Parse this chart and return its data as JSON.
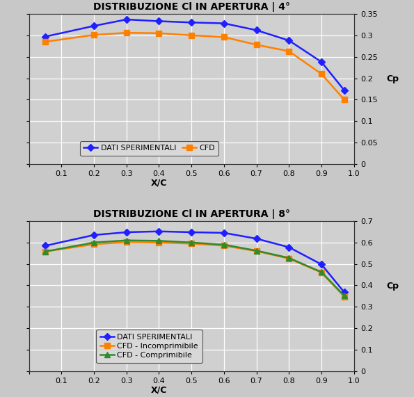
{
  "chart1": {
    "title": "DISTRIBUZIONE Cl IN APERTURA | 4°",
    "x": [
      0.05,
      0.2,
      0.3,
      0.4,
      0.5,
      0.6,
      0.7,
      0.8,
      0.9,
      0.97
    ],
    "dati_sperimentali": [
      0.297,
      0.322,
      0.337,
      0.333,
      0.33,
      0.328,
      0.312,
      0.288,
      0.238,
      0.172
    ],
    "cfd": [
      0.285,
      0.301,
      0.306,
      0.305,
      0.3,
      0.296,
      0.278,
      0.263,
      0.21,
      0.15
    ],
    "ylim": [
      0,
      0.35
    ],
    "yticks": [
      0,
      0.05,
      0.1,
      0.15,
      0.2,
      0.25,
      0.3,
      0.35
    ],
    "xlabel": "X/C",
    "ylabel": "Cp"
  },
  "chart2": {
    "title": "DISTRIBUZIONE Cl IN APERTURA | 8°",
    "x": [
      0.05,
      0.2,
      0.3,
      0.4,
      0.5,
      0.6,
      0.7,
      0.8,
      0.9,
      0.97
    ],
    "dati_sperimentali": [
      0.585,
      0.635,
      0.648,
      0.652,
      0.648,
      0.645,
      0.618,
      0.578,
      0.498,
      0.368
    ],
    "cfd_incomprimibile": [
      0.558,
      0.592,
      0.602,
      0.6,
      0.595,
      0.585,
      0.56,
      0.525,
      0.46,
      0.348
    ],
    "cfd_comprimibile": [
      0.558,
      0.6,
      0.61,
      0.608,
      0.6,
      0.59,
      0.562,
      0.528,
      0.462,
      0.352
    ],
    "ylim": [
      0,
      0.7
    ],
    "yticks": [
      0,
      0.1,
      0.2,
      0.3,
      0.4,
      0.5,
      0.6,
      0.7
    ],
    "xlabel": "X/C",
    "ylabel": "Cp"
  },
  "colors": {
    "dati_sperimentali": "#1f1fff",
    "cfd": "#ff8000",
    "cfd_incomprimibile": "#ff8000",
    "cfd_comprimibile": "#2e8b2e"
  },
  "bg_color": "#c8c8c8",
  "plot_bg_color": "#d0d0d0",
  "grid_color": "#ffffff",
  "xticks": [
    0,
    0.1,
    0.2,
    0.3,
    0.4,
    0.5,
    0.6,
    0.7,
    0.8,
    0.9,
    1.0
  ],
  "title_fontsize": 10,
  "tick_fontsize": 8,
  "legend_fontsize": 8,
  "linewidth": 1.8,
  "markersize": 5.5
}
